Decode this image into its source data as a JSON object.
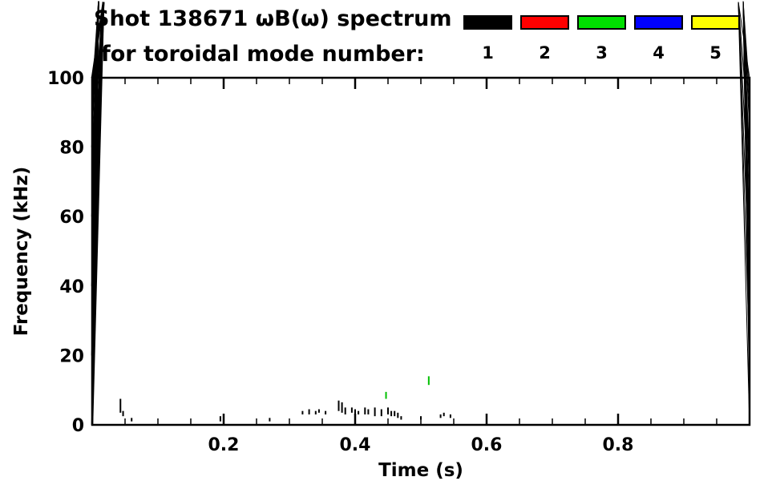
{
  "figure": {
    "background": "#ffffff"
  },
  "chart_data": {
    "type": "scatter",
    "title": "Shot 138671 ωB(ω) spectrum",
    "subtitle": "for toroidal mode number:",
    "xlabel": "Time (s)",
    "ylabel": "Frequency (kHz)",
    "xlim": [
      0.0,
      1.0
    ],
    "ylim": [
      0,
      100
    ],
    "grid": false,
    "legend_position": "top-right",
    "x_major_ticks": [
      {
        "value": 0.2,
        "label": "0.2"
      },
      {
        "value": 0.4,
        "label": "0.4"
      },
      {
        "value": 0.6,
        "label": "0.6"
      },
      {
        "value": 0.8,
        "label": "0.8"
      }
    ],
    "x_minor_step": 0.05,
    "y_major_ticks": [
      {
        "value": 0,
        "label": "0"
      },
      {
        "value": 20,
        "label": "20"
      },
      {
        "value": 40,
        "label": "40"
      },
      {
        "value": 60,
        "label": "60"
      },
      {
        "value": 80,
        "label": "80"
      },
      {
        "value": 100,
        "label": "100"
      }
    ],
    "y_minor_step": 5,
    "legend": [
      {
        "label": "1",
        "color": "#000000"
      },
      {
        "label": "2",
        "color": "#ff0000"
      },
      {
        "label": "3",
        "color": "#00e000"
      },
      {
        "label": "4",
        "color": "#0000ff"
      },
      {
        "label": "5",
        "color": "#ffff00"
      }
    ],
    "series": [
      {
        "name": "mode 1",
        "color": "#000000",
        "segments": [
          [
            0.043,
            3.5,
            7.5
          ],
          [
            0.047,
            2.5,
            4.0
          ],
          [
            0.06,
            1.0,
            2.0
          ],
          [
            0.195,
            1.0,
            2.5
          ],
          [
            0.27,
            1.0,
            2.0
          ],
          [
            0.32,
            3.0,
            4.0
          ],
          [
            0.33,
            3.0,
            4.5
          ],
          [
            0.34,
            3.0,
            4.0
          ],
          [
            0.345,
            3.5,
            4.5
          ],
          [
            0.355,
            3.0,
            4.0
          ],
          [
            0.375,
            4.0,
            7.0
          ],
          [
            0.38,
            3.5,
            6.5
          ],
          [
            0.385,
            3.0,
            5.0
          ],
          [
            0.395,
            3.5,
            5.0
          ],
          [
            0.4,
            3.0,
            4.5
          ],
          [
            0.405,
            3.0,
            4.0
          ],
          [
            0.415,
            3.0,
            5.0
          ],
          [
            0.42,
            3.0,
            4.5
          ],
          [
            0.43,
            2.5,
            5.0
          ],
          [
            0.44,
            2.5,
            4.5
          ],
          [
            0.45,
            3.0,
            5.0
          ],
          [
            0.455,
            2.5,
            4.0
          ],
          [
            0.46,
            2.5,
            4.0
          ],
          [
            0.465,
            2.0,
            3.5
          ],
          [
            0.47,
            1.5,
            2.5
          ],
          [
            0.5,
            1.5,
            2.5
          ],
          [
            0.53,
            2.0,
            3.0
          ],
          [
            0.535,
            2.5,
            3.5
          ],
          [
            0.545,
            2.0,
            3.0
          ]
        ]
      },
      {
        "name": "mode 3",
        "color": "#00c000",
        "segments": [
          [
            0.447,
            7.5,
            9.5
          ],
          [
            0.512,
            11.5,
            14.0
          ]
        ]
      }
    ]
  }
}
